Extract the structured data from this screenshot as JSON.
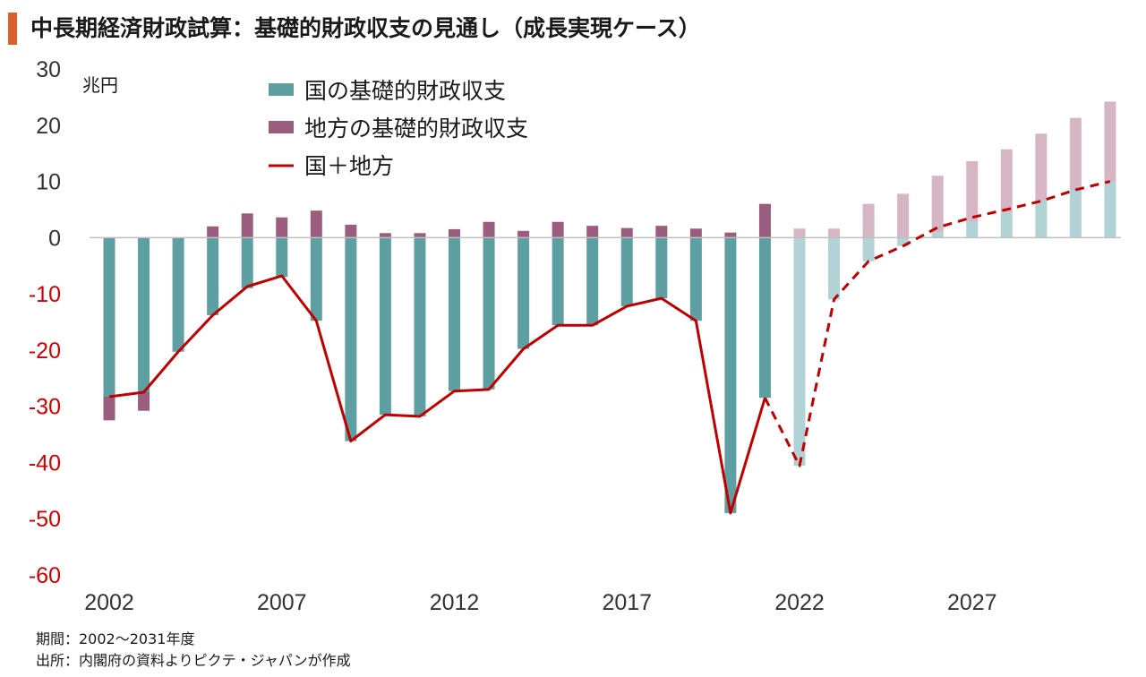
{
  "title": "中長期経済財政試算：基礎的財政収支の見通し（成長実現ケース）",
  "colors": {
    "accent": "#d9622b",
    "national": "#5e9fa2",
    "national_projected": "#b1d3d5",
    "local": "#9a5d7d",
    "local_projected": "#d6b6c5",
    "total_line": "#c00000",
    "axis_text_positive": "#333333",
    "axis_text_negative": "#d00000"
  },
  "notes": {
    "period": "期間：2002～2031年度",
    "source": "出所：内閣府の資料よりピクテ・ジャパンが作成"
  },
  "chart_data": {
    "type": "bar",
    "unit_label": "兆円",
    "ylim": [
      -60,
      30
    ],
    "yticks": [
      30,
      20,
      10,
      0,
      -10,
      -20,
      -30,
      -40,
      -50,
      -60
    ],
    "xticks": [
      "2002",
      "2007",
      "2012",
      "2017",
      "2022",
      "2027"
    ],
    "categories": [
      "2002",
      "2003",
      "2004",
      "2005",
      "2006",
      "2007",
      "2008",
      "2009",
      "2010",
      "2011",
      "2012",
      "2013",
      "2014",
      "2015",
      "2016",
      "2017",
      "2018",
      "2019",
      "2020",
      "2021",
      "2022",
      "2023",
      "2024",
      "2025",
      "2026",
      "2027",
      "2028",
      "2029",
      "2030",
      "2031"
    ],
    "projection_start": "2022",
    "legend_position": "top-left",
    "grid": false,
    "series": [
      {
        "name": "国の基礎的財政収支",
        "kind": "bar",
        "values": [
          -28.3,
          -27.5,
          -20.3,
          -13.8,
          -9.0,
          -7.0,
          -14.8,
          -36.2,
          -31.5,
          -31.8,
          -27.3,
          -27.0,
          -19.8,
          -15.6,
          -15.6,
          -12.2,
          -10.8,
          -14.8,
          -49.0,
          -28.5,
          -40.6,
          -11.0,
          -4.2,
          -1.5,
          1.0,
          2.8,
          4.5,
          6.5,
          8.5,
          10.0
        ]
      },
      {
        "name": "地方の基礎的財政収支",
        "kind": "bar",
        "values": [
          -4.2,
          -3.3,
          0,
          2.0,
          4.3,
          3.6,
          4.8,
          2.3,
          0.8,
          0.8,
          1.5,
          2.8,
          1.2,
          2.8,
          2.1,
          1.7,
          2.1,
          1.6,
          0.9,
          6.0,
          1.6,
          1.6,
          6.0,
          7.8,
          10.0,
          10.8,
          11.2,
          12.0,
          12.8,
          14.2
        ]
      },
      {
        "name": "国＋地方",
        "kind": "line",
        "values": [
          -28.3,
          -27.5,
          -20.3,
          -13.8,
          -8.7,
          -6.8,
          -14.8,
          -36.2,
          -31.5,
          -31.8,
          -27.3,
          -27.0,
          -19.8,
          -15.6,
          -15.6,
          -12.2,
          -10.8,
          -14.8,
          -49.0,
          -28.5,
          -40.6,
          -11.0,
          -4.2,
          -1.5,
          1.8,
          3.6,
          5.0,
          6.5,
          8.5,
          10.0
        ]
      }
    ]
  }
}
